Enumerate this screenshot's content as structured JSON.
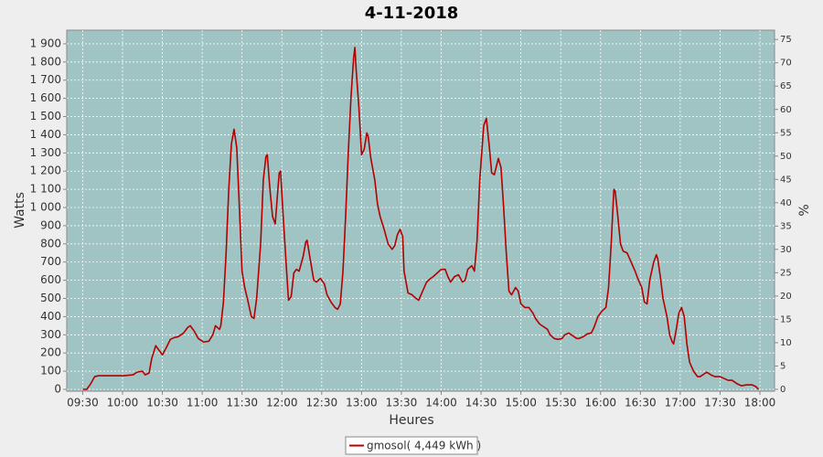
{
  "chart_data": {
    "type": "line",
    "title": "4-11-2018",
    "xlabel": "Heures",
    "ylabel": "Watts",
    "y2label": "%",
    "xlim": [
      558,
      1091
    ],
    "ylim": [
      -10,
      1975
    ],
    "y2lim": [
      -0.4,
      77
    ],
    "grid": true,
    "legend": "bottom",
    "xticks": [
      {
        "value": 570,
        "label": "09:30"
      },
      {
        "value": 600,
        "label": "10:00"
      },
      {
        "value": 630,
        "label": "10:30"
      },
      {
        "value": 660,
        "label": "11:00"
      },
      {
        "value": 690,
        "label": "11:30"
      },
      {
        "value": 720,
        "label": "12:00"
      },
      {
        "value": 750,
        "label": "12:30"
      },
      {
        "value": 780,
        "label": "13:00"
      },
      {
        "value": 810,
        "label": "13:30"
      },
      {
        "value": 840,
        "label": "14:00"
      },
      {
        "value": 870,
        "label": "14:30"
      },
      {
        "value": 900,
        "label": "15:00"
      },
      {
        "value": 930,
        "label": "15:30"
      },
      {
        "value": 960,
        "label": "16:00"
      },
      {
        "value": 990,
        "label": "16:30"
      },
      {
        "value": 1020,
        "label": "17:00"
      },
      {
        "value": 1050,
        "label": "17:30"
      },
      {
        "value": 1080,
        "label": "18:00"
      }
    ],
    "yticks": [
      0,
      100,
      200,
      300,
      400,
      500,
      600,
      700,
      800,
      900,
      {
        "value": 1000,
        "label": "1 000"
      },
      {
        "value": 1100,
        "label": "1 100"
      },
      {
        "value": 1200,
        "label": "1 200"
      },
      {
        "value": 1300,
        "label": "1 300"
      },
      {
        "value": 1400,
        "label": "1 400"
      },
      {
        "value": 1500,
        "label": "1 500"
      },
      {
        "value": 1600,
        "label": "1 600"
      },
      {
        "value": 1700,
        "label": "1 700"
      },
      {
        "value": 1800,
        "label": "1 800"
      },
      {
        "value": 1900,
        "label": "1 900"
      }
    ],
    "y2ticks": [
      0,
      5,
      10,
      15,
      20,
      25,
      30,
      35,
      40,
      45,
      50,
      55,
      60,
      65,
      70,
      75
    ],
    "x": [
      570,
      573,
      576,
      579,
      582,
      591,
      601,
      608,
      611,
      615,
      617,
      620,
      622,
      625,
      627,
      630,
      633,
      636,
      639,
      642,
      646,
      649,
      651,
      654,
      657,
      661,
      665,
      668,
      670,
      673,
      674,
      676,
      678,
      680,
      682,
      684,
      686,
      688,
      690,
      692,
      694,
      697,
      699,
      701,
      704,
      706,
      708,
      709,
      711,
      713,
      715,
      717,
      718,
      719,
      721,
      724,
      725,
      727,
      729,
      731,
      733,
      736,
      738,
      739,
      741,
      744,
      746,
      749,
      752,
      754,
      757,
      760,
      762,
      764,
      766,
      768,
      770,
      772,
      774,
      775,
      776,
      778,
      780,
      782,
      784,
      785,
      787,
      790,
      792,
      794,
      797,
      800,
      803,
      805,
      807,
      809,
      811,
      812,
      815,
      818,
      821,
      823,
      826,
      829,
      832,
      834,
      837,
      840,
      843,
      845,
      847,
      850,
      853,
      856,
      858,
      860,
      863,
      865,
      867,
      869,
      872,
      874,
      876,
      878,
      880,
      883,
      885,
      887,
      889,
      891,
      893,
      896,
      898,
      900,
      903,
      906,
      909,
      911,
      914,
      917,
      920,
      922,
      925,
      928,
      931,
      933,
      936,
      939,
      942,
      944,
      947,
      950,
      953,
      955,
      958,
      961,
      964,
      966,
      968,
      970,
      971,
      973,
      975,
      977,
      980,
      983,
      986,
      988,
      991,
      993,
      995,
      997,
      1000,
      1002,
      1003,
      1005,
      1007,
      1010,
      1012,
      1014,
      1015,
      1017,
      1019,
      1021,
      1023,
      1025,
      1027,
      1030,
      1033,
      1035,
      1038,
      1040,
      1043,
      1046,
      1050,
      1053,
      1056,
      1059,
      1063,
      1066,
      1070,
      1074,
      1077,
      1079
    ],
    "series": [
      {
        "name": "gmosol( 4,449 kWh )",
        "color": "#b40000",
        "values": [
          0,
          0,
          30,
          70,
          75,
          75,
          75,
          80,
          95,
          100,
          80,
          90,
          170,
          240,
          220,
          190,
          230,
          275,
          285,
          290,
          310,
          340,
          350,
          320,
          280,
          260,
          265,
          300,
          350,
          330,
          350,
          480,
          750,
          1100,
          1350,
          1430,
          1330,
          1000,
          650,
          560,
          500,
          400,
          390,
          500,
          800,
          1150,
          1280,
          1290,
          1100,
          950,
          910,
          1100,
          1190,
          1200,
          950,
          600,
          490,
          510,
          640,
          660,
          650,
          730,
          810,
          820,
          730,
          600,
          590,
          610,
          580,
          520,
          480,
          450,
          440,
          470,
          650,
          950,
          1300,
          1600,
          1820,
          1880,
          1750,
          1550,
          1290,
          1320,
          1410,
          1390,
          1270,
          1150,
          1020,
          950,
          880,
          800,
          770,
          790,
          850,
          880,
          840,
          650,
          530,
          520,
          500,
          490,
          540,
          590,
          610,
          620,
          640,
          660,
          660,
          620,
          590,
          620,
          630,
          590,
          600,
          660,
          680,
          650,
          820,
          1150,
          1450,
          1490,
          1350,
          1190,
          1180,
          1270,
          1220,
          1000,
          750,
          540,
          520,
          560,
          540,
          470,
          450,
          450,
          420,
          390,
          360,
          345,
          330,
          300,
          280,
          275,
          280,
          300,
          310,
          295,
          280,
          280,
          290,
          305,
          310,
          340,
          400,
          430,
          450,
          560,
          800,
          1100,
          1090,
          950,
          800,
          760,
          750,
          700,
          650,
          610,
          560,
          480,
          470,
          600,
          700,
          740,
          720,
          620,
          500,
          400,
          300,
          260,
          250,
          330,
          420,
          450,
          400,
          250,
          150,
          100,
          70,
          70,
          85,
          95,
          80,
          70,
          70,
          60,
          50,
          50,
          30,
          20,
          25,
          25,
          15,
          0
        ]
      }
    ]
  }
}
